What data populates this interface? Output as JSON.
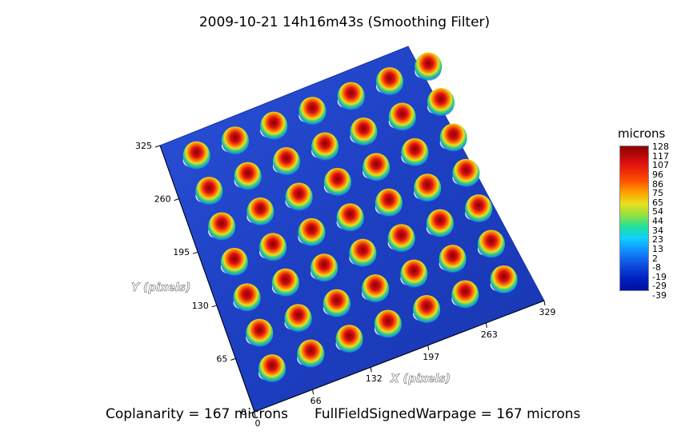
{
  "title": "2009-10-21 14h16m43s (Smoothing Filter)",
  "chart_data": {
    "type": "heatmap",
    "subtype": "3d-surface",
    "title": "2009-10-21 14h16m43s (Smoothing Filter)",
    "xlabel": "X (pixels)",
    "ylabel": "Y (pixels)",
    "x_ticks": [
      "0",
      "66",
      "132",
      "197",
      "263",
      "329"
    ],
    "y_ticks": [
      "0",
      "65",
      "130",
      "195",
      "260",
      "325"
    ],
    "xlim": [
      0,
      329
    ],
    "ylim": [
      0,
      325
    ],
    "colorbar": {
      "title": "microns",
      "ticks": [
        "128",
        "117",
        "107",
        "96",
        "86",
        "75",
        "65",
        "54",
        "44",
        "34",
        "23",
        "13",
        "2",
        "-8",
        "-19",
        "-29",
        "-39"
      ],
      "range": [
        -39,
        128
      ],
      "colormap": "rainbow"
    },
    "bump_grid": {
      "columns": 7,
      "rows": 7,
      "peak_value": 128,
      "base_value": -29
    }
  },
  "footer": {
    "coplanarity": "Coplanarity = 167 microns",
    "warpage": "FullFieldSignedWarpage = 167 microns"
  },
  "colors": {
    "surface": "#1e3fc4",
    "peak": "#b01010",
    "axis": "#000000"
  }
}
